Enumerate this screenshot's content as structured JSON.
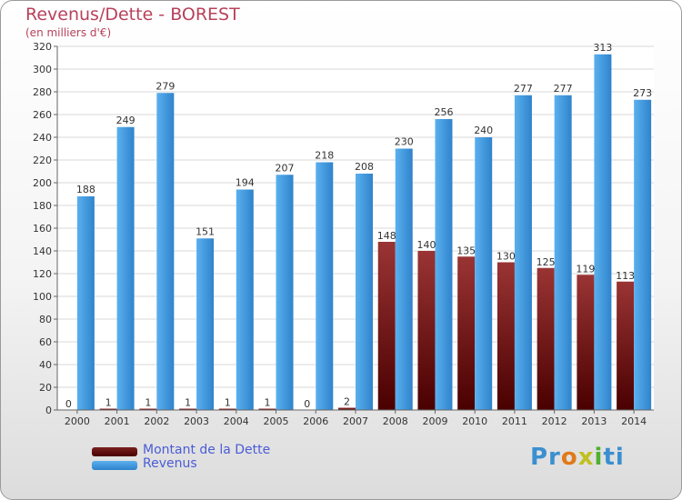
{
  "chart_data": {
    "type": "bar",
    "title": "Revenus/Dette - BOREST",
    "subtitle": "(en milliers d'€)",
    "categories": [
      "2000",
      "2001",
      "2002",
      "2003",
      "2004",
      "2005",
      "2006",
      "2007",
      "2008",
      "2009",
      "2010",
      "2011",
      "2012",
      "2013",
      "2014"
    ],
    "series": [
      {
        "name": "Montant de la Dette",
        "color": "#6e1414",
        "values": [
          0,
          1,
          1,
          1,
          1,
          1,
          0,
          2,
          148,
          140,
          135,
          130,
          125,
          119,
          113
        ]
      },
      {
        "name": "Revenus",
        "color": "#3a93dc",
        "values": [
          188,
          249,
          279,
          151,
          194,
          207,
          218,
          208,
          230,
          256,
          240,
          277,
          277,
          313,
          273
        ]
      }
    ],
    "ylim": [
      0,
      320
    ],
    "yticks": [
      0,
      20,
      40,
      60,
      80,
      100,
      120,
      140,
      160,
      180,
      200,
      220,
      240,
      260,
      280,
      300,
      320
    ],
    "grid": true,
    "legend": "bottom-left"
  },
  "logo": {
    "parts": [
      "Pr",
      "o",
      "x",
      "i",
      "ti"
    ]
  }
}
